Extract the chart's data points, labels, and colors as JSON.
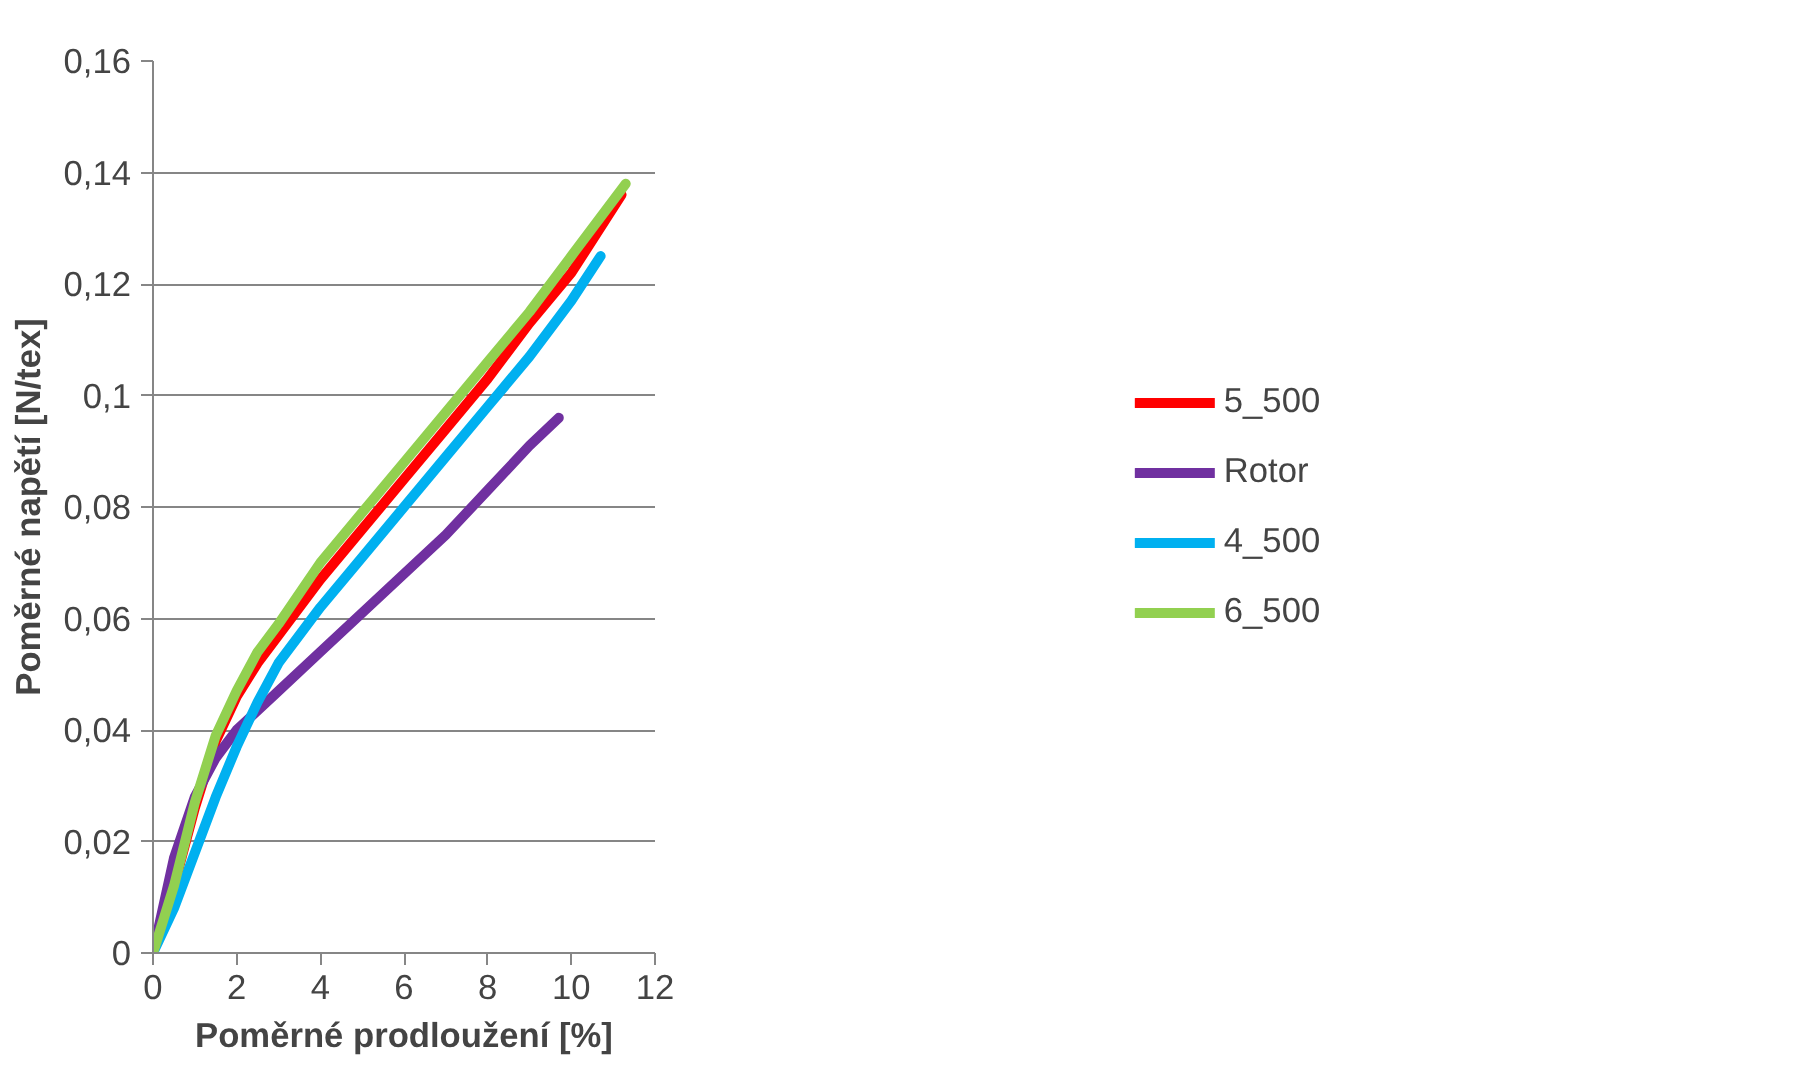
{
  "chart_data": {
    "type": "line",
    "xlabel": "Poměrné prodloužení [%]",
    "ylabel": "Poměrné napětí [N/tex]",
    "xlim": [
      0,
      12
    ],
    "xticks": [
      0,
      2,
      4,
      6,
      8,
      10,
      12
    ],
    "ylim": [
      0,
      0.16
    ],
    "yticks": [
      0,
      {
        "value": 0.02,
        "label": "0,02"
      },
      {
        "value": 0.04,
        "label": "0,04"
      },
      {
        "value": 0.06,
        "label": "0,06"
      },
      {
        "value": 0.08,
        "label": "0,08"
      },
      {
        "value": 0.1,
        "label": "0,1"
      },
      {
        "value": 0.12,
        "label": "0,12"
      },
      {
        "value": 0.14,
        "label": "0,14"
      },
      {
        "value": 0.16,
        "label": "0,16"
      }
    ],
    "grid": "y",
    "legend": "right",
    "marker": "none",
    "line_style": "solid",
    "series": [
      {
        "name": "5_500",
        "color": "#ff0000",
        "x": [
          0,
          0.5,
          1,
          1.5,
          2,
          2.5,
          3,
          4,
          5,
          6,
          7,
          8,
          9,
          10,
          11.2
        ],
        "values": [
          0,
          0.012,
          0.026,
          0.038,
          0.046,
          0.052,
          0.057,
          0.067,
          0.076,
          0.085,
          0.094,
          0.103,
          0.113,
          0.122,
          0.136
        ]
      },
      {
        "name": "Rotor",
        "color": "#7030a0",
        "x": [
          0,
          0.5,
          1,
          1.5,
          2,
          3,
          4,
          5,
          6,
          7,
          8,
          9,
          9.7
        ],
        "values": [
          0,
          0.017,
          0.028,
          0.035,
          0.04,
          0.047,
          0.054,
          0.061,
          0.068,
          0.075,
          0.083,
          0.091,
          0.096
        ]
      },
      {
        "name": "4_500",
        "color": "#00b0f0",
        "x": [
          0,
          0.5,
          1,
          1.5,
          2,
          2.5,
          3,
          4,
          5,
          6,
          7,
          8,
          9,
          10,
          10.7
        ],
        "values": [
          0,
          0.008,
          0.018,
          0.028,
          0.037,
          0.045,
          0.052,
          0.062,
          0.071,
          0.08,
          0.089,
          0.098,
          0.107,
          0.117,
          0.125
        ]
      },
      {
        "name": "6_500",
        "color": "#92d050",
        "x": [
          0,
          0.5,
          1,
          1.5,
          2,
          2.5,
          3,
          4,
          5,
          6,
          7,
          8,
          9,
          10,
          11.3
        ],
        "values": [
          0,
          0.012,
          0.027,
          0.039,
          0.047,
          0.054,
          0.059,
          0.07,
          0.079,
          0.088,
          0.097,
          0.106,
          0.115,
          0.125,
          0.138
        ]
      }
    ]
  }
}
